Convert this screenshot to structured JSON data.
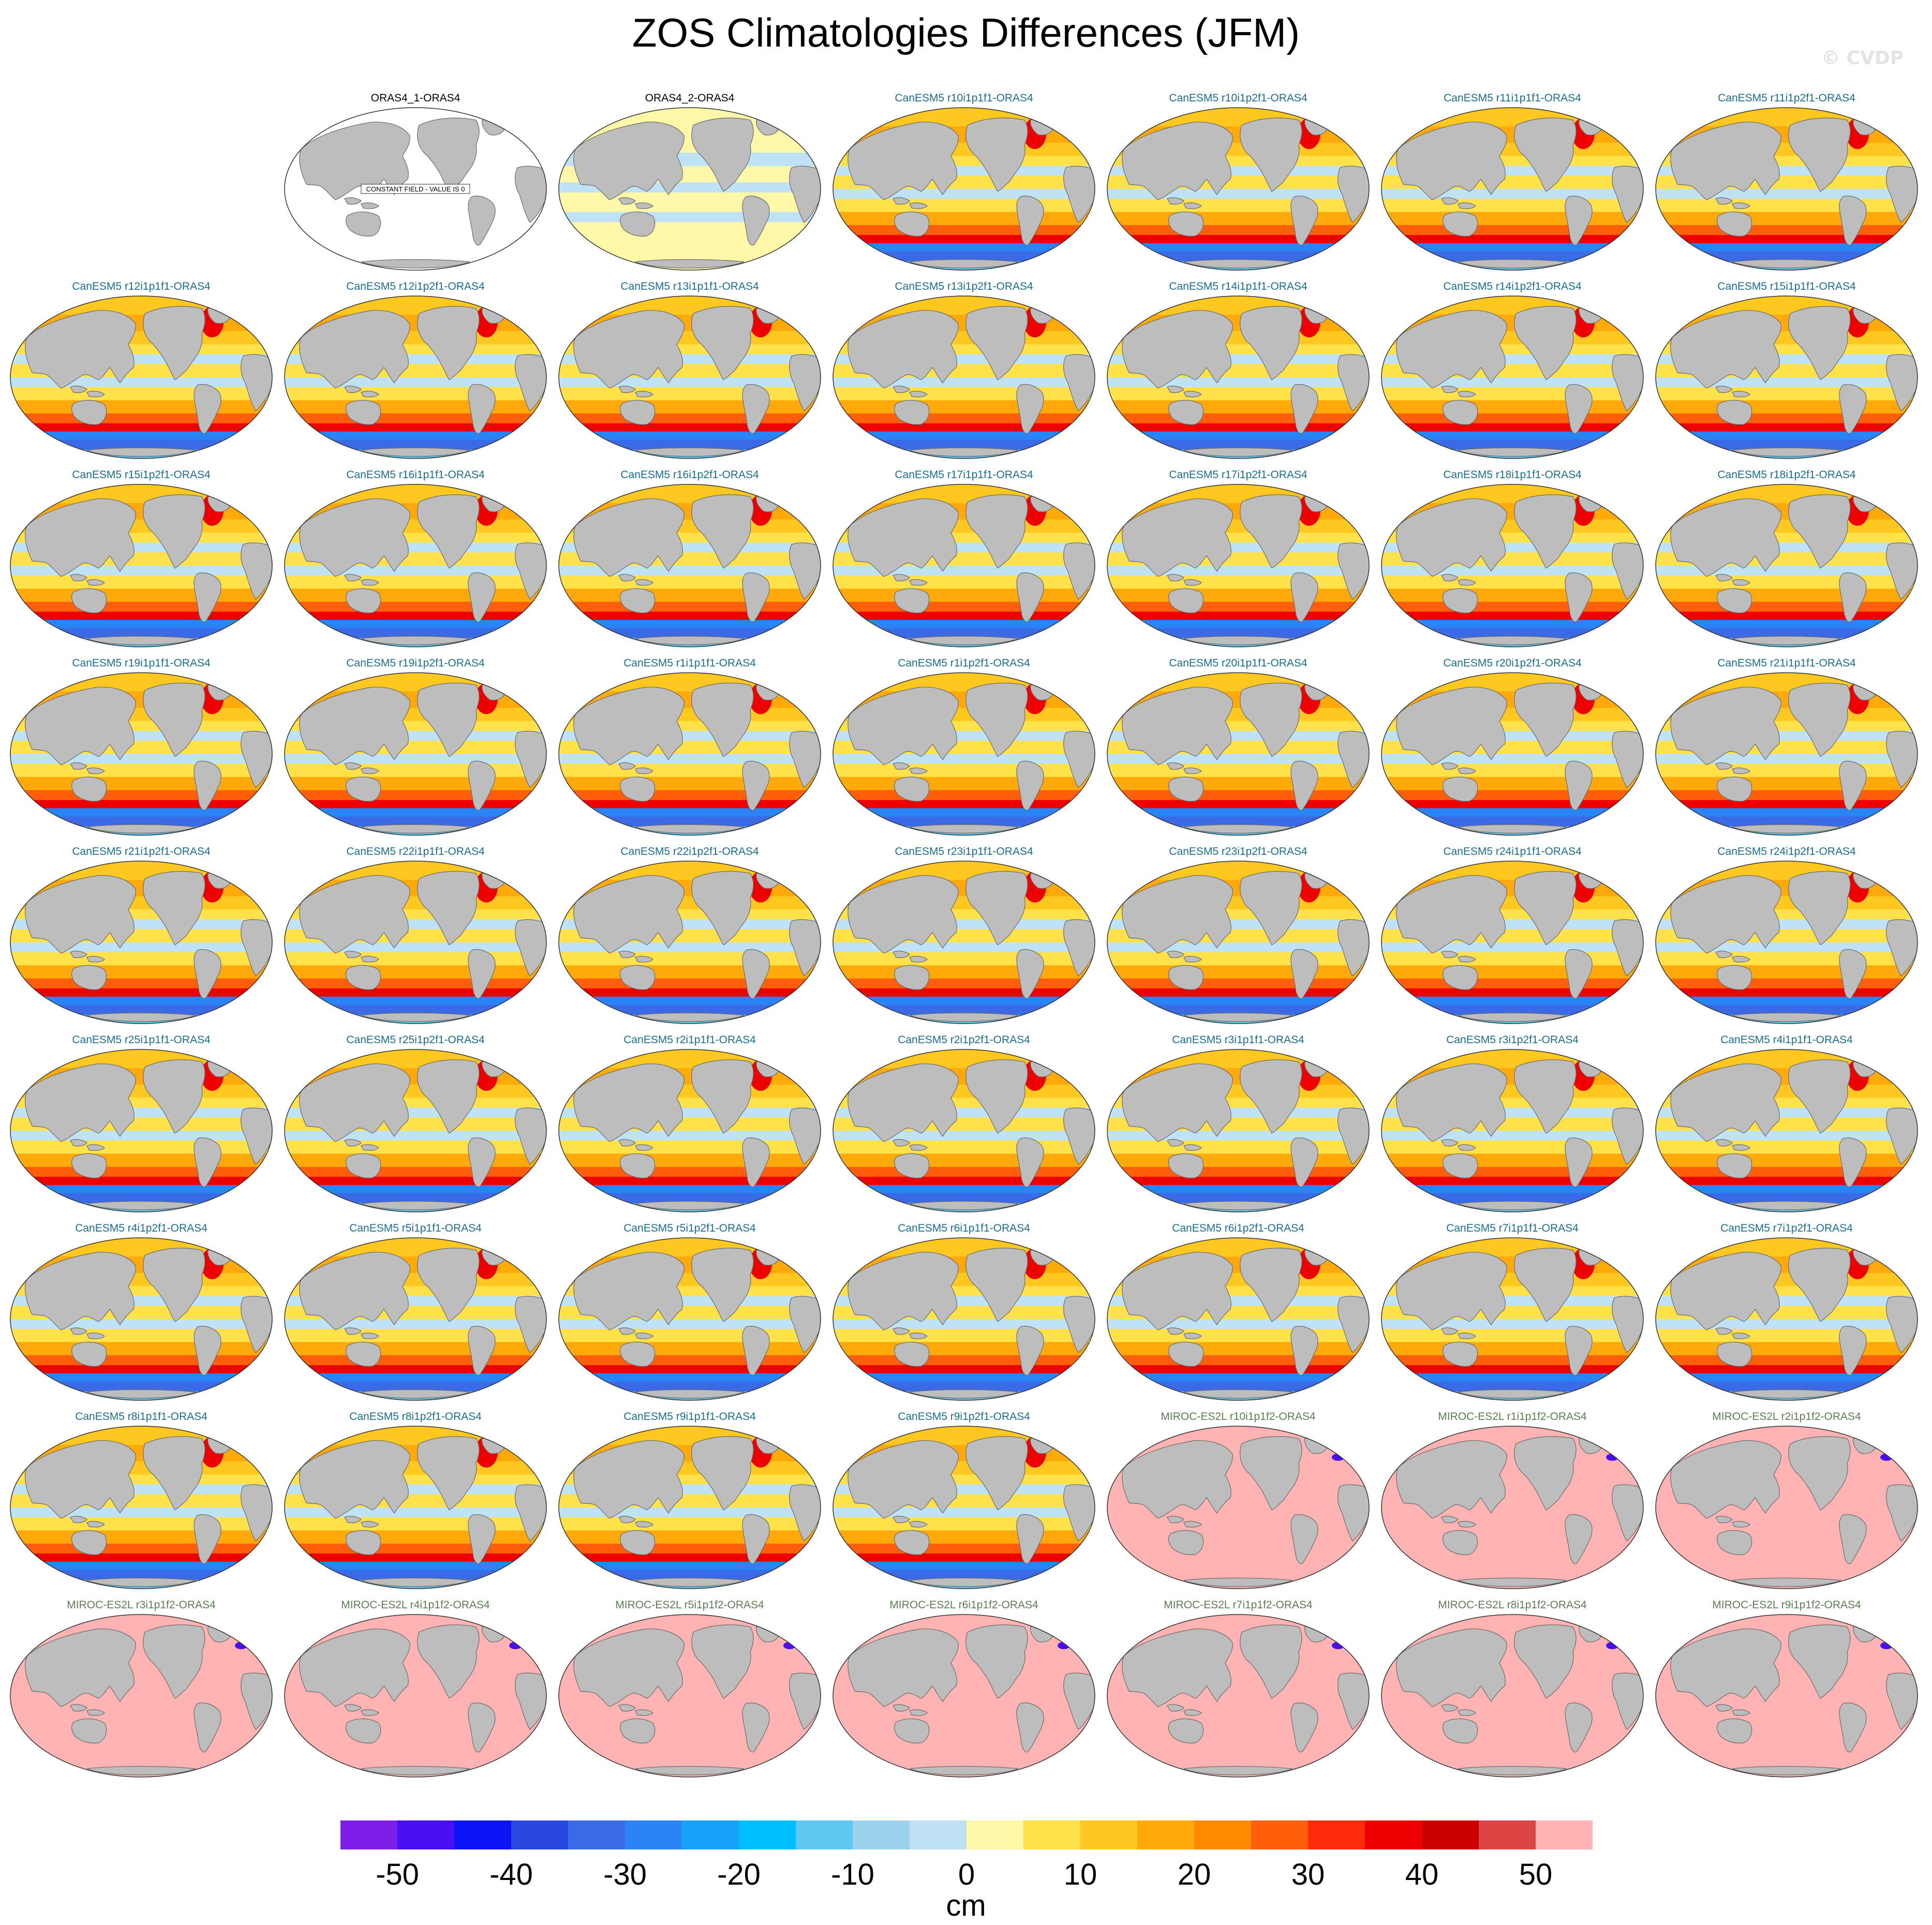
{
  "title": "ZOS Climatologies Differences (JFM)",
  "watermark": "© CVDP",
  "constant_field_note": "CONSTANT FIELD - VALUE IS 0",
  "colors": {
    "land": "#bdbdbd",
    "coast": "#6b6b6b",
    "obs_title": "#000000",
    "canesm_title": "#1a6e93",
    "miroc_title": "#5b7f52"
  },
  "colorbar": {
    "unit": "cm",
    "ticks": [
      "-50",
      "-40",
      "-30",
      "-20",
      "-10",
      "0",
      "10",
      "20",
      "30",
      "40",
      "50"
    ],
    "colors": [
      "#7d1fe8",
      "#4a0ff0",
      "#0a14f5",
      "#2848e0",
      "#3a6ae6",
      "#2a84f5",
      "#16a2fa",
      "#00bfff",
      "#5ec8f2",
      "#9dd2ef",
      "#bfe3f5",
      "#fff8a8",
      "#ffe14a",
      "#ffc820",
      "#ffaa0a",
      "#ff8a00",
      "#ff5e0a",
      "#ff2a0a",
      "#ee0000",
      "#cc0000",
      "#dd4444",
      "#ffb3b3"
    ]
  },
  "panels": [
    {
      "label": "",
      "style": "empty"
    },
    {
      "label": "ORAS4_1-ORAS4",
      "style": "constant"
    },
    {
      "label": "ORAS4_2-ORAS4",
      "style": "obs2"
    },
    {
      "label": "CanESM5 r10i1p1f1-ORAS4",
      "style": "can"
    },
    {
      "label": "CanESM5 r10i1p2f1-ORAS4",
      "style": "can"
    },
    {
      "label": "CanESM5 r11i1p1f1-ORAS4",
      "style": "can"
    },
    {
      "label": "CanESM5 r11i1p2f1-ORAS4",
      "style": "can"
    },
    {
      "label": "CanESM5 r12i1p1f1-ORAS4",
      "style": "can"
    },
    {
      "label": "CanESM5 r12i1p2f1-ORAS4",
      "style": "can"
    },
    {
      "label": "CanESM5 r13i1p1f1-ORAS4",
      "style": "can"
    },
    {
      "label": "CanESM5 r13i1p2f1-ORAS4",
      "style": "can"
    },
    {
      "label": "CanESM5 r14i1p1f1-ORAS4",
      "style": "can"
    },
    {
      "label": "CanESM5 r14i1p2f1-ORAS4",
      "style": "can"
    },
    {
      "label": "CanESM5 r15i1p1f1-ORAS4",
      "style": "can"
    },
    {
      "label": "CanESM5 r15i1p2f1-ORAS4",
      "style": "can"
    },
    {
      "label": "CanESM5 r16i1p1f1-ORAS4",
      "style": "can"
    },
    {
      "label": "CanESM5 r16i1p2f1-ORAS4",
      "style": "can"
    },
    {
      "label": "CanESM5 r17i1p1f1-ORAS4",
      "style": "can"
    },
    {
      "label": "CanESM5 r17i1p2f1-ORAS4",
      "style": "can"
    },
    {
      "label": "CanESM5 r18i1p1f1-ORAS4",
      "style": "can"
    },
    {
      "label": "CanESM5 r18i1p2f1-ORAS4",
      "style": "can"
    },
    {
      "label": "CanESM5 r19i1p1f1-ORAS4",
      "style": "can"
    },
    {
      "label": "CanESM5 r19i1p2f1-ORAS4",
      "style": "can"
    },
    {
      "label": "CanESM5 r1i1p1f1-ORAS4",
      "style": "can"
    },
    {
      "label": "CanESM5 r1i1p2f1-ORAS4",
      "style": "can"
    },
    {
      "label": "CanESM5 r20i1p1f1-ORAS4",
      "style": "can"
    },
    {
      "label": "CanESM5 r20i1p2f1-ORAS4",
      "style": "can"
    },
    {
      "label": "CanESM5 r21i1p1f1-ORAS4",
      "style": "can"
    },
    {
      "label": "CanESM5 r21i1p2f1-ORAS4",
      "style": "can"
    },
    {
      "label": "CanESM5 r22i1p1f1-ORAS4",
      "style": "can"
    },
    {
      "label": "CanESM5 r22i1p2f1-ORAS4",
      "style": "can"
    },
    {
      "label": "CanESM5 r23i1p1f1-ORAS4",
      "style": "can"
    },
    {
      "label": "CanESM5 r23i1p2f1-ORAS4",
      "style": "can"
    },
    {
      "label": "CanESM5 r24i1p1f1-ORAS4",
      "style": "can"
    },
    {
      "label": "CanESM5 r24i1p2f1-ORAS4",
      "style": "can"
    },
    {
      "label": "CanESM5 r25i1p1f1-ORAS4",
      "style": "can"
    },
    {
      "label": "CanESM5 r25i1p2f1-ORAS4",
      "style": "can"
    },
    {
      "label": "CanESM5 r2i1p1f1-ORAS4",
      "style": "can"
    },
    {
      "label": "CanESM5 r2i1p2f1-ORAS4",
      "style": "can"
    },
    {
      "label": "CanESM5 r3i1p1f1-ORAS4",
      "style": "can"
    },
    {
      "label": "CanESM5 r3i1p2f1-ORAS4",
      "style": "can"
    },
    {
      "label": "CanESM5 r4i1p1f1-ORAS4",
      "style": "can"
    },
    {
      "label": "CanESM5 r4i1p2f1-ORAS4",
      "style": "can"
    },
    {
      "label": "CanESM5 r5i1p1f1-ORAS4",
      "style": "can"
    },
    {
      "label": "CanESM5 r5i1p2f1-ORAS4",
      "style": "can"
    },
    {
      "label": "CanESM5 r6i1p1f1-ORAS4",
      "style": "can"
    },
    {
      "label": "CanESM5 r6i1p2f1-ORAS4",
      "style": "can"
    },
    {
      "label": "CanESM5 r7i1p1f1-ORAS4",
      "style": "can"
    },
    {
      "label": "CanESM5 r7i1p2f1-ORAS4",
      "style": "can"
    },
    {
      "label": "CanESM5 r8i1p1f1-ORAS4",
      "style": "can"
    },
    {
      "label": "CanESM5 r8i1p2f1-ORAS4",
      "style": "can"
    },
    {
      "label": "CanESM5 r9i1p1f1-ORAS4",
      "style": "can"
    },
    {
      "label": "CanESM5 r9i1p2f1-ORAS4",
      "style": "can"
    },
    {
      "label": "MIROC-ES2L r10i1p1f2-ORAS4",
      "style": "miroc"
    },
    {
      "label": "MIROC-ES2L r1i1p1f2-ORAS4",
      "style": "miroc"
    },
    {
      "label": "MIROC-ES2L r2i1p1f2-ORAS4",
      "style": "miroc"
    },
    {
      "label": "MIROC-ES2L r3i1p1f2-ORAS4",
      "style": "miroc"
    },
    {
      "label": "MIROC-ES2L r4i1p1f2-ORAS4",
      "style": "miroc"
    },
    {
      "label": "MIROC-ES2L r5i1p1f2-ORAS4",
      "style": "miroc"
    },
    {
      "label": "MIROC-ES2L r6i1p1f2-ORAS4",
      "style": "miroc"
    },
    {
      "label": "MIROC-ES2L r7i1p1f2-ORAS4",
      "style": "miroc"
    },
    {
      "label": "MIROC-ES2L r8i1p1f2-ORAS4",
      "style": "miroc"
    },
    {
      "label": "MIROC-ES2L r9i1p1f2-ORAS4",
      "style": "miroc"
    }
  ]
}
